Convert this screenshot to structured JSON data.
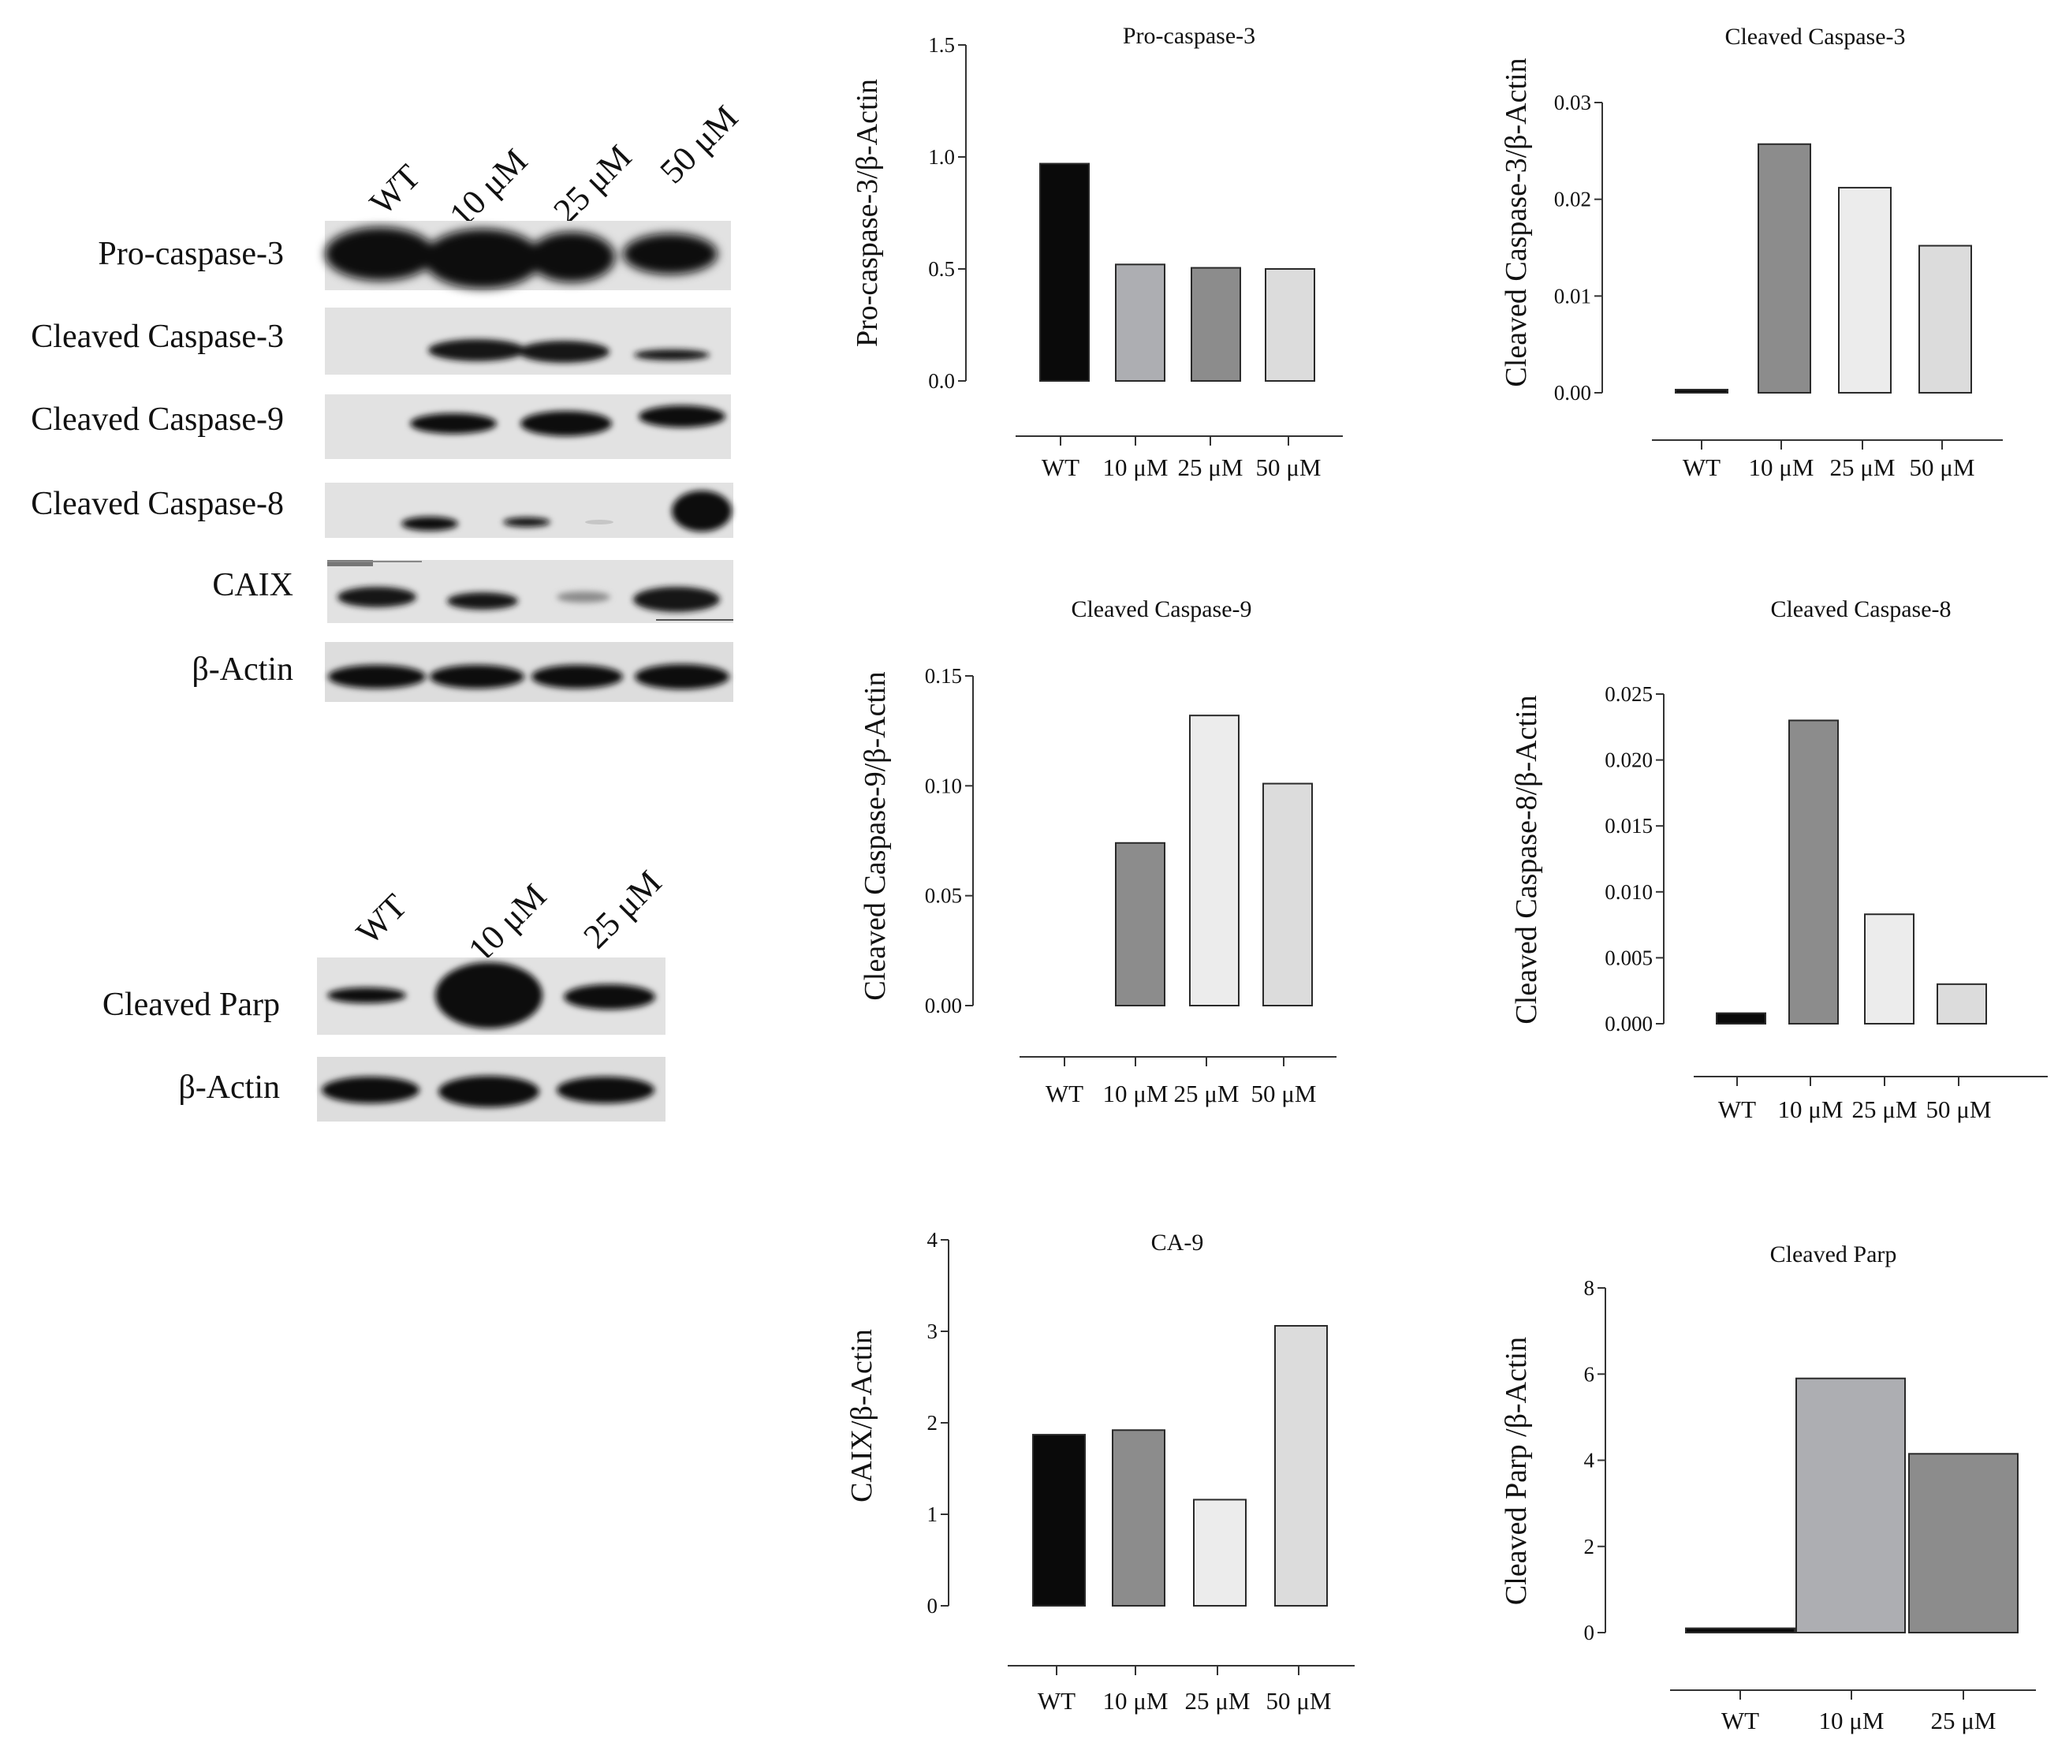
{
  "blot_panel_1": {
    "lanes": [
      "WT",
      "10 μM",
      "25 μM",
      "50 μM"
    ],
    "rows": [
      "Pro-caspase-3",
      "Cleaved Caspase-3",
      "Cleaved Caspase-9",
      "Cleaved Caspase-8",
      "CAIX",
      "β-Actin"
    ]
  },
  "blot_panel_2": {
    "lanes": [
      "WT",
      "10 μM",
      "25 μM"
    ],
    "rows": [
      "Cleaved Parp",
      "β-Actin"
    ]
  },
  "colors": {
    "black": "#0a0a0a",
    "mid_gray": "#8c8c8c",
    "light_gray": "#adaeb2",
    "very_light": "#ececec",
    "pale": "#dcdcdc"
  },
  "chart_data": [
    {
      "type": "bar",
      "title": "Pro-caspase-3",
      "ylabel": "Pro-caspase-3/β-Actin",
      "xlabel": "",
      "categories": [
        "WT",
        "10 μM",
        "25 μM",
        "50 μM"
      ],
      "values": [
        0.97,
        0.52,
        0.505,
        0.5
      ],
      "ylim": [
        0,
        1.5
      ],
      "yticks": [
        "0.0",
        "0.5",
        "1.0",
        "1.5"
      ],
      "bar_colors": [
        "#0a0a0a",
        "#adaeb2",
        "#8c8c8c",
        "#dcdcdc"
      ]
    },
    {
      "type": "bar",
      "title": "Cleaved Caspase-3",
      "ylabel": "Cleaved Caspase-3/β-Actin",
      "xlabel": "",
      "categories": [
        "WT",
        "10 μM",
        "25 μM",
        "50 μM"
      ],
      "values": [
        0.0002,
        0.0257,
        0.0212,
        0.0152
      ],
      "ylim": [
        0,
        0.03
      ],
      "yticks": [
        "0.00",
        "0.01",
        "0.02",
        "0.03"
      ],
      "bar_colors": [
        "#0a0a0a",
        "#8c8c8c",
        "#ececec",
        "#dcdcdc"
      ]
    },
    {
      "type": "bar",
      "title": "Cleaved Caspase-9",
      "ylabel": "Cleaved Caspase-9/β-Actin",
      "xlabel": "",
      "categories": [
        "WT",
        "10 μM",
        "25 μM",
        "50 μM"
      ],
      "values": [
        0,
        0.074,
        0.132,
        0.101
      ],
      "ylim": [
        0,
        0.15
      ],
      "yticks": [
        "0.00",
        "0.05",
        "0.10",
        "0.15"
      ],
      "bar_colors": [
        "#0a0a0a",
        "#8c8c8c",
        "#ececec",
        "#dcdcdc"
      ]
    },
    {
      "type": "bar",
      "title": "Cleaved Caspase-8",
      "ylabel": "Cleaved Caspase-8/β-Actin",
      "xlabel": "",
      "categories": [
        "WT",
        "10 μM",
        "25 μM",
        "50 μM"
      ],
      "values": [
        0.0008,
        0.023,
        0.0083,
        0.003
      ],
      "ylim": [
        0,
        0.025
      ],
      "yticks": [
        "0.000",
        "0.005",
        "0.010",
        "0.015",
        "0.020",
        "0.025"
      ],
      "bar_colors": [
        "#0a0a0a",
        "#8c8c8c",
        "#ececec",
        "#dcdcdc"
      ]
    },
    {
      "type": "bar",
      "title": "CA-9",
      "ylabel": "CAIX/β-Actin",
      "xlabel": "",
      "categories": [
        "WT",
        "10 μM",
        "25 μM",
        "50 μM"
      ],
      "values": [
        1.87,
        1.92,
        1.16,
        3.06
      ],
      "ylim": [
        0,
        4
      ],
      "yticks": [
        "0",
        "1",
        "2",
        "3",
        "4"
      ],
      "bar_colors": [
        "#0a0a0a",
        "#8c8c8c",
        "#ececec",
        "#dcdcdc"
      ]
    },
    {
      "type": "bar",
      "title": "Cleaved Parp",
      "ylabel": "Cleaved Parp /β-Actin",
      "xlabel": "",
      "categories": [
        "WT",
        "10 μM",
        "25 μM"
      ],
      "values": [
        0.1,
        5.9,
        4.15
      ],
      "ylim": [
        0,
        8
      ],
      "yticks": [
        "0",
        "2",
        "4",
        "6",
        "8"
      ],
      "bar_colors": [
        "#0a0a0a",
        "#adaeb2",
        "#8c8c8c"
      ]
    }
  ]
}
